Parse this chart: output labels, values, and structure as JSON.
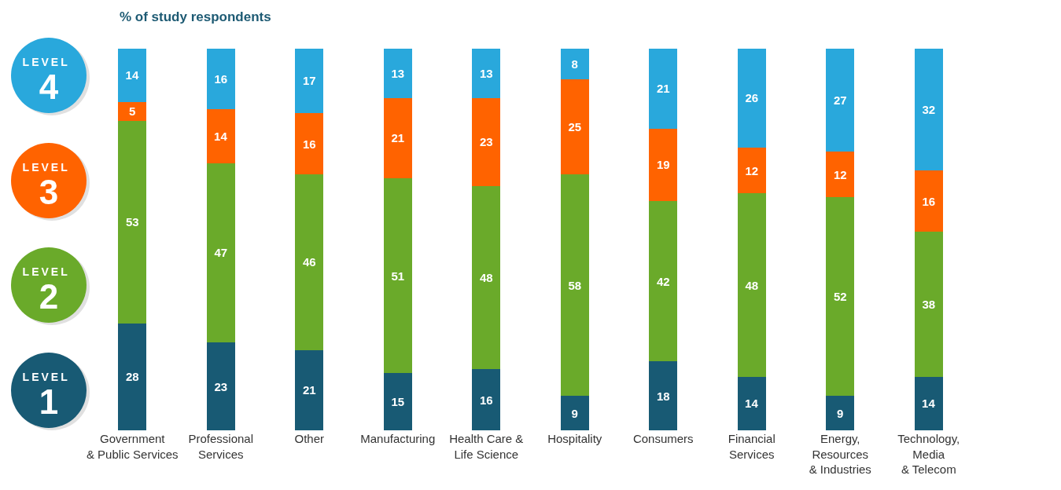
{
  "chart_data": {
    "type": "bar",
    "stacked": true,
    "data_labels": true,
    "legend": "left",
    "grid": false,
    "title": "% of study respondents",
    "categories": [
      "Government\n& Public Services",
      "Professional\nServices",
      "Other",
      "Manufacturing",
      "Health Care &\nLife Science",
      "Hospitality",
      "Consumers",
      "Financial\nServices",
      "Energy,\nResources\n& Industries",
      "Technology,\nMedia\n& Telecom"
    ],
    "series": [
      {
        "name": "LEVEL 1",
        "color": "#185a74",
        "values": [
          28,
          23,
          21,
          15,
          16,
          9,
          18,
          14,
          9,
          14
        ]
      },
      {
        "name": "LEVEL 2",
        "color": "#6aaa2a",
        "values": [
          53,
          47,
          46,
          51,
          48,
          58,
          42,
          48,
          52,
          38
        ]
      },
      {
        "name": "LEVEL 3",
        "color": "#ff6300",
        "values": [
          5,
          14,
          16,
          21,
          23,
          25,
          19,
          12,
          12,
          16
        ]
      },
      {
        "name": "LEVEL 4",
        "color": "#29a8dc",
        "values": [
          14,
          16,
          17,
          13,
          13,
          8,
          21,
          26,
          27,
          32
        ]
      }
    ]
  }
}
